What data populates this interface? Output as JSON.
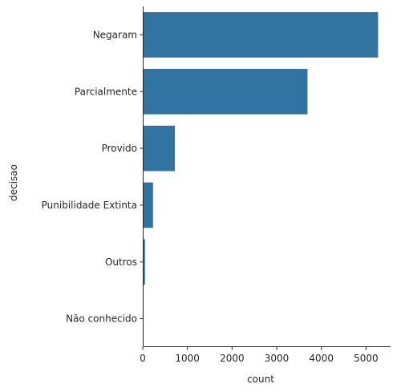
{
  "chart_data": {
    "type": "bar",
    "orientation": "horizontal",
    "categories": [
      "Negaram",
      "Parcialmente",
      "Provido",
      "Punibilidade Extinta",
      "Outros",
      "Não conhecido"
    ],
    "values": [
      5270,
      3690,
      720,
      230,
      50,
      3
    ],
    "xlabel": "count",
    "ylabel": "decisao",
    "xlim": [
      0,
      5550
    ],
    "xticks": [
      0,
      1000,
      2000,
      3000,
      4000,
      5000
    ],
    "grid": false,
    "bar_color": "#3274a1"
  }
}
